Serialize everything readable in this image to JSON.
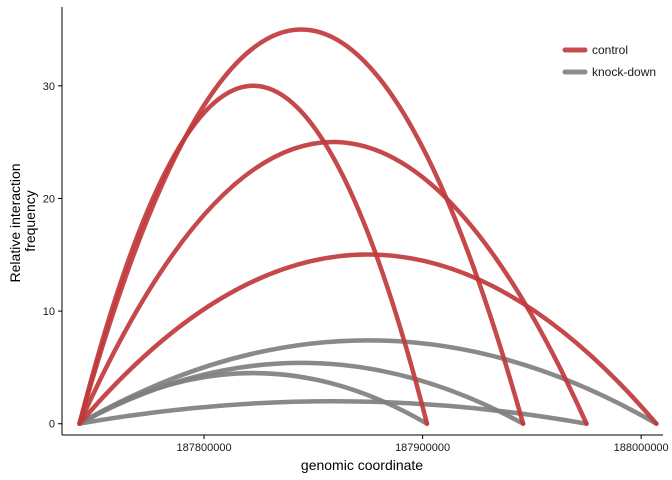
{
  "chart_data": {
    "type": "line",
    "xlabel": "genomic coordinate",
    "ylabel_lines": [
      "Relative interaction",
      "frequency"
    ],
    "xlim": [
      187735000,
      188010000
    ],
    "ylim": [
      -1,
      37
    ],
    "x_ticks": [
      187800000,
      187900000,
      188000000
    ],
    "y_ticks": [
      0,
      10,
      20,
      30
    ],
    "grid": false,
    "legend_position": "top-right",
    "legend": [
      {
        "label": "control",
        "color": "#c0393b"
      },
      {
        "label": "knock-down",
        "color": "#7f7f7f"
      }
    ],
    "anchor_x": 187743000,
    "series": [
      {
        "name": "control",
        "color": "#c0393b",
        "arcs": [
          {
            "end": 187902000,
            "peak_x": 187823000,
            "peak_y": 30
          },
          {
            "end": 187946000,
            "peak_x": 187844000,
            "peak_y": 35
          },
          {
            "end": 187975000,
            "peak_x": 187862000,
            "peak_y": 25
          },
          {
            "end": 188007000,
            "peak_x": 187870000,
            "peak_y": 15
          }
        ]
      },
      {
        "name": "knock-down",
        "color": "#7f7f7f",
        "arcs": [
          {
            "end": 187902000,
            "peak_x": 187822000,
            "peak_y": 4.5
          },
          {
            "end": 187946000,
            "peak_x": 187844000,
            "peak_y": 5.4
          },
          {
            "end": 187975000,
            "peak_x": 187862000,
            "peak_y": 2
          },
          {
            "end": 188007000,
            "peak_x": 187875000,
            "peak_y": 7.4
          }
        ]
      }
    ]
  }
}
